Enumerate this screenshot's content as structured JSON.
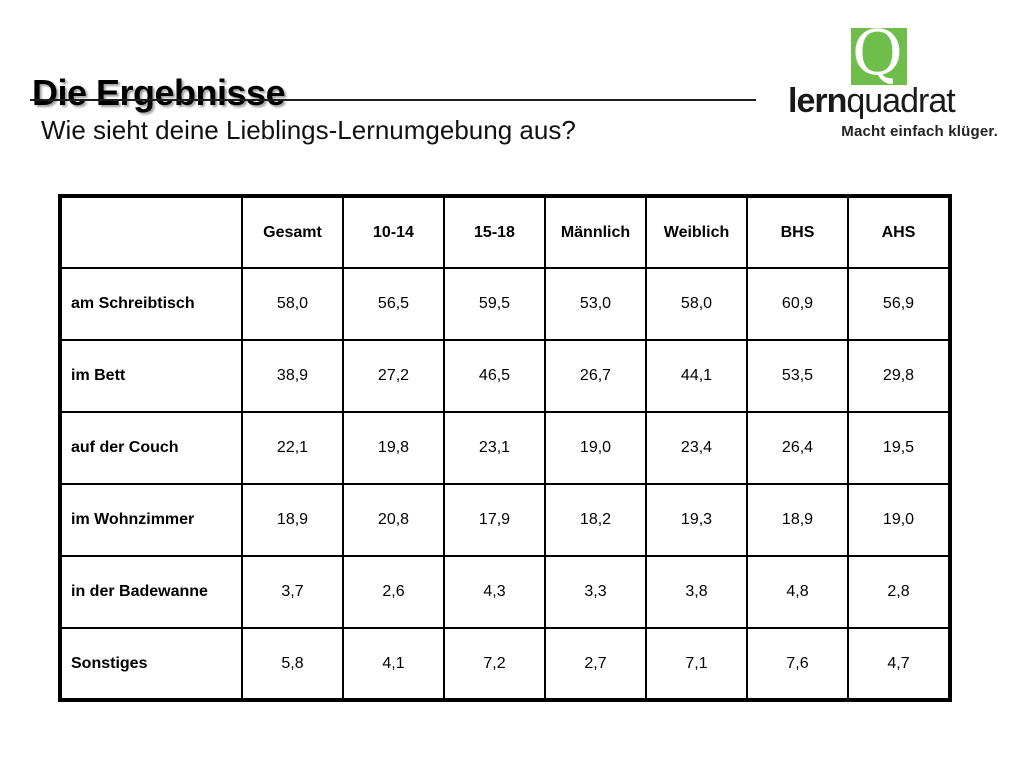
{
  "page": {
    "title": "Die Ergebnisse",
    "subtitle": "Wie sieht deine Lieblings-Lernumgebung aus?"
  },
  "logo": {
    "q_letter": "Q",
    "brand_bold": "lern",
    "brand_light": "quadrat",
    "tagline": "Macht einfach klüger.",
    "accent_green": "#6fbd4b"
  },
  "chart_data": {
    "type": "table",
    "title": "Wie sieht deine Lieblings-Lernumgebung aus?",
    "columns": [
      "",
      "Gesamt",
      "10-14",
      "15-18",
      "Männlich",
      "Weiblich",
      "BHS",
      "AHS"
    ],
    "rows": [
      {
        "label": "am Schreibtisch",
        "values": [
          "58,0",
          "56,5",
          "59,5",
          "53,0",
          "58,0",
          "60,9",
          "56,9"
        ]
      },
      {
        "label": "im Bett",
        "values": [
          "38,9",
          "27,2",
          "46,5",
          "26,7",
          "44,1",
          "53,5",
          "29,8"
        ]
      },
      {
        "label": "auf der Couch",
        "values": [
          "22,1",
          "19,8",
          "23,1",
          "19,0",
          "23,4",
          "26,4",
          "19,5"
        ]
      },
      {
        "label": "im Wohnzimmer",
        "values": [
          "18,9",
          "20,8",
          "17,9",
          "18,2",
          "19,3",
          "18,9",
          "19,0"
        ]
      },
      {
        "label": "in der Badewanne",
        "values": [
          "3,7",
          "2,6",
          "4,3",
          "3,3",
          "3,8",
          "4,8",
          "2,8"
        ]
      },
      {
        "label": "Sonstiges",
        "values": [
          "5,8",
          "4,1",
          "7,2",
          "2,7",
          "7,1",
          "7,6",
          "4,7"
        ]
      }
    ]
  }
}
